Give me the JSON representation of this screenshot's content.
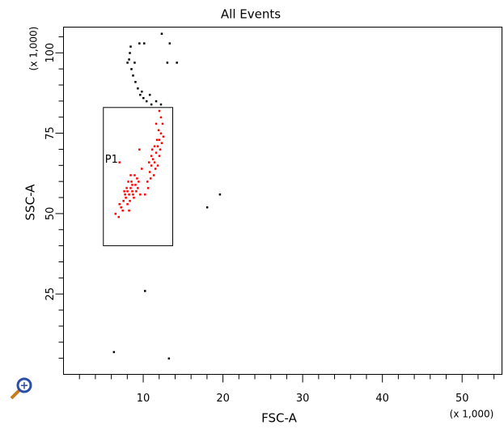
{
  "chart_data": {
    "type": "scatter",
    "title": "All Events",
    "x_label": "FSC-A",
    "y_label": "SSC-A",
    "x_multiplier": "(x 1,000)",
    "y_multiplier": "(x 1,000)",
    "xlim": [
      0,
      55
    ],
    "ylim": [
      0,
      108
    ],
    "xticks": [
      10,
      20,
      30,
      40,
      50
    ],
    "yticks": [
      25,
      50,
      75,
      100
    ],
    "xminorticks": [
      2,
      4,
      6,
      8,
      12,
      14,
      16,
      18,
      22,
      24,
      26,
      28,
      32,
      34,
      36,
      38,
      42,
      44,
      46,
      48,
      52,
      54
    ],
    "yminorticks": [
      5,
      10,
      15,
      20,
      30,
      35,
      40,
      45,
      55,
      60,
      65,
      70,
      80,
      85,
      90,
      95,
      105
    ],
    "gates": [
      {
        "name": "P1",
        "x": [
          5,
          13.7
        ],
        "y": [
          40,
          83
        ],
        "color": "#000000"
      }
    ],
    "series": [
      {
        "color": "#ff0000",
        "x": [
          7.2,
          7.5,
          7.8,
          8.0,
          8.2,
          8.4,
          8.6,
          8.8,
          9.0,
          9.2,
          8.1,
          7.6,
          7.9,
          8.5,
          8.9,
          9.3,
          8.3,
          7.4,
          8.7,
          9.1,
          7.0,
          8.0,
          8.6,
          9.4,
          7.7,
          8.2,
          6.9,
          6.5,
          9.6,
          8.4,
          10.5,
          10.8,
          11.0,
          11.2,
          11.4,
          11.6,
          11.8,
          12.0,
          12.2,
          11.5,
          11.0,
          10.7,
          12.1,
          12.3,
          11.9,
          12.4,
          11.3,
          10.6,
          11.7,
          12.0,
          11.1,
          12.5,
          11.4,
          10.9,
          12.2,
          12.0,
          11.6,
          9.8,
          10.2,
          7.0,
          9.5,
          11.8
        ],
        "y": [
          52,
          54,
          55,
          53,
          56,
          58,
          57,
          55,
          59,
          61,
          60,
          57,
          58,
          60,
          62,
          58,
          54,
          51,
          56,
          57,
          53,
          57,
          59,
          60,
          56,
          51,
          49,
          50,
          56,
          62,
          60,
          63,
          65,
          67,
          66,
          69,
          71,
          73,
          75,
          64,
          68,
          66,
          70,
          72,
          76,
          78,
          62,
          58,
          73,
          68,
          70,
          74,
          71,
          61,
          80,
          82,
          78,
          64,
          56,
          66,
          70,
          65
        ]
      },
      {
        "color": "#000000",
        "x": [
          8.2,
          8.3,
          8.5,
          8.7,
          9.0,
          9.3,
          9.6,
          10.0,
          10.4,
          11.0,
          11.6,
          12.2,
          8.4,
          8.9,
          9.5,
          10.1,
          12.3,
          13.0,
          14.2,
          13.3,
          9.8,
          10.8,
          18.0,
          19.6,
          10.2,
          6.3,
          13.2,
          8.0
        ],
        "y": [
          98,
          100,
          95,
          93,
          91,
          89,
          87,
          86,
          85,
          84,
          85,
          84,
          102,
          97,
          103,
          103,
          106,
          97,
          97,
          103,
          88,
          87,
          52,
          56,
          26,
          7,
          5,
          97
        ]
      }
    ]
  }
}
